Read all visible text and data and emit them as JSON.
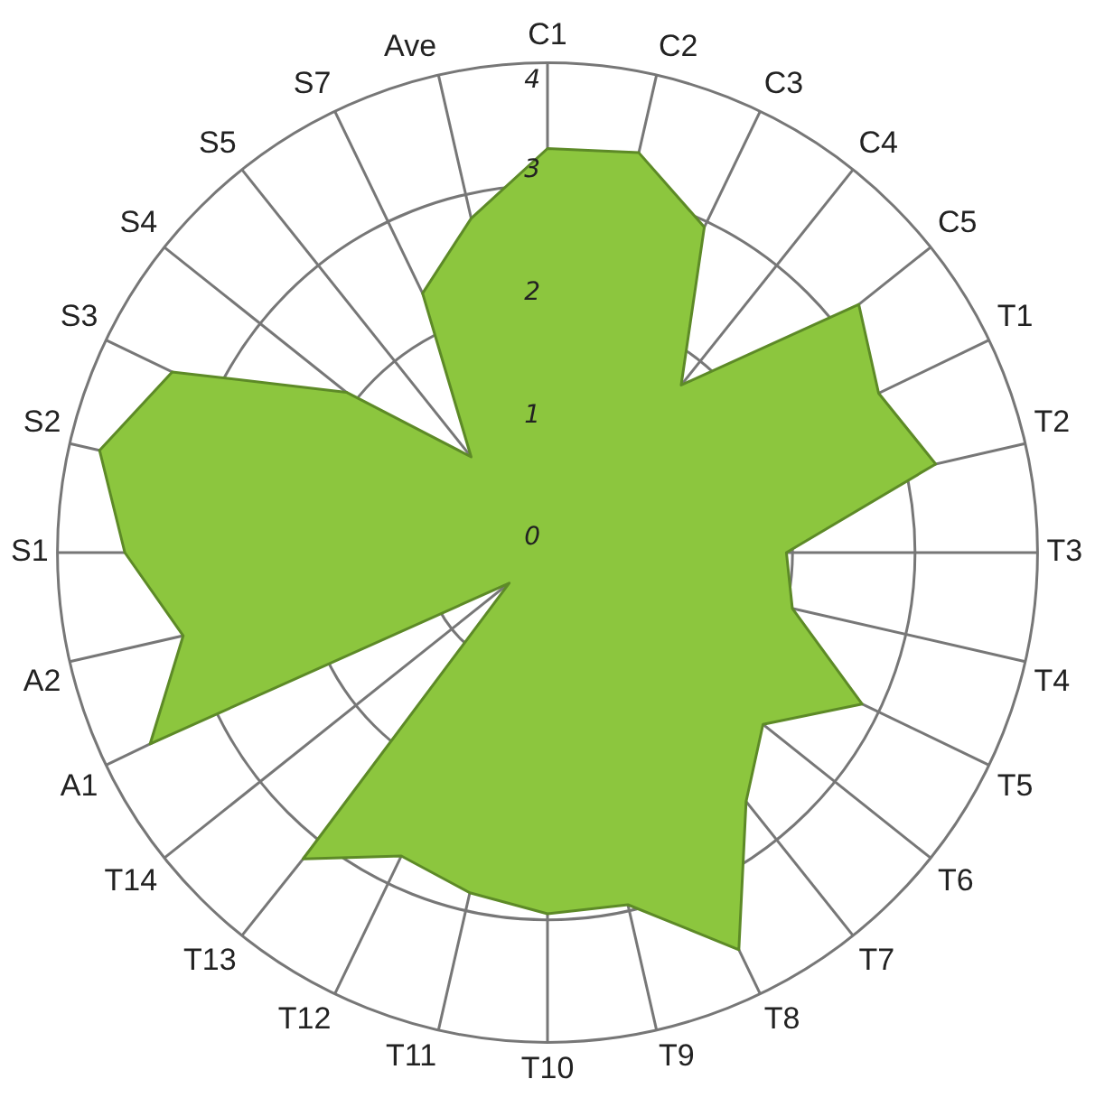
{
  "chart_data": {
    "type": "radar",
    "categories": [
      "C1",
      "C2",
      "C3",
      "C4",
      "C5",
      "T1",
      "T2",
      "T3",
      "T4",
      "T5",
      "T6",
      "T7",
      "T8",
      "T9",
      "T10",
      "T11",
      "T12",
      "T13",
      "T14",
      "A1",
      "A2",
      "S1",
      "S2",
      "S3",
      "S4",
      "S5",
      "S7",
      "Ave"
    ],
    "series": [
      {
        "color": "#8cc63e",
        "values": [
          3.3,
          3.35,
          2.95,
          1.75,
          3.25,
          3.0,
          3.25,
          1.95,
          2.05,
          2.85,
          2.25,
          2.6,
          3.6,
          2.95,
          2.95,
          2.85,
          2.75,
          3.2,
          0.4,
          3.6,
          3.05,
          3.45,
          3.75,
          3.4,
          2.1,
          1.0,
          2.35,
          2.8
        ]
      }
    ],
    "ylim": [
      0,
      4
    ],
    "yticks": [
      0,
      1,
      2,
      3,
      4
    ],
    "grid": true,
    "legend": false,
    "marker": "none"
  }
}
